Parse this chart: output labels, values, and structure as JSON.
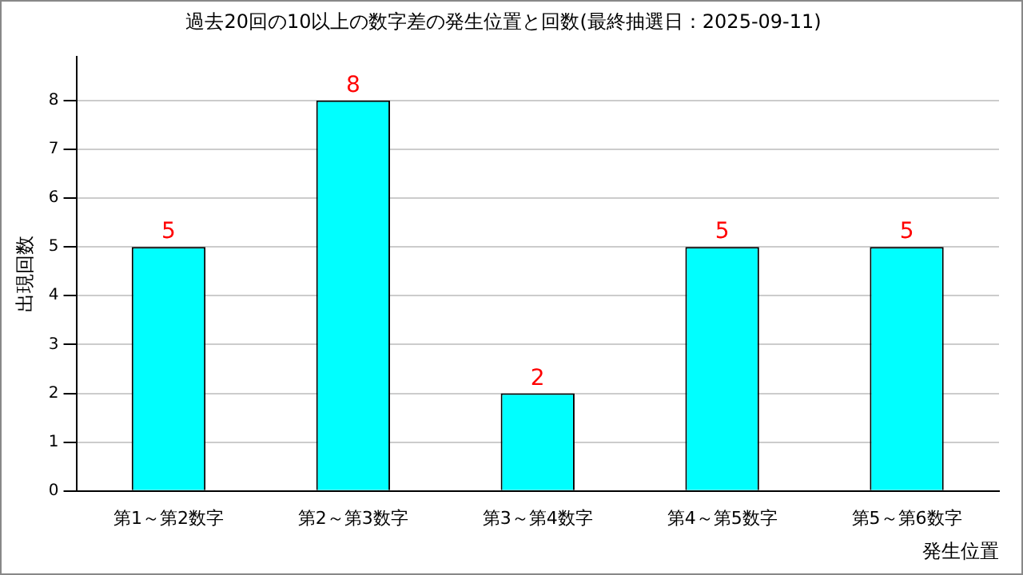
{
  "chart_data": {
    "type": "bar",
    "title": "過去20回の10以上の数字差の発生位置と回数(最終抽選日：2025-09-11)",
    "xlabel": "発生位置",
    "ylabel": "出現回数",
    "categories": [
      "第1～第2数字",
      "第2～第3数字",
      "第3～第4数字",
      "第4～第5数字",
      "第5～第6数字"
    ],
    "values": [
      5,
      8,
      2,
      5,
      5
    ],
    "color": "#00ffff",
    "ylim": [
      0,
      8.9
    ],
    "yticks": [
      0,
      1,
      2,
      3,
      4,
      5,
      6,
      7,
      8
    ],
    "grid": "y",
    "data_labels": true,
    "legend": false
  }
}
